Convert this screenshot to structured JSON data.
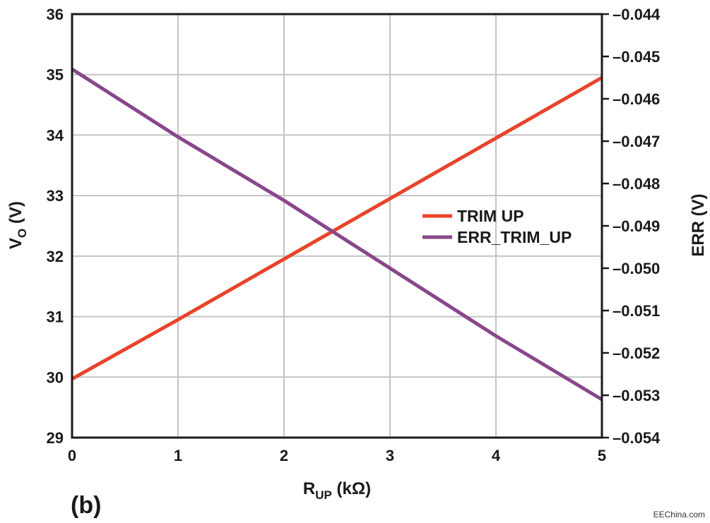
{
  "chart_data": {
    "type": "line",
    "panel_label": "(b)",
    "x_axis": {
      "label_main": "R",
      "label_sub": "UP",
      "label_unit": " (kΩ)",
      "ticks": [
        "0",
        "1",
        "2",
        "3",
        "4",
        "5"
      ],
      "range": [
        0,
        5
      ]
    },
    "y_axis_left": {
      "label_main": "V",
      "label_sub": "O",
      "label_unit": " (V)",
      "ticks": [
        "29",
        "30",
        "31",
        "32",
        "33",
        "34",
        "35",
        "36"
      ],
      "range": [
        29,
        36
      ]
    },
    "y_axis_right": {
      "label": "ERR (V)",
      "ticks": [
        "–0.054",
        "–0.053",
        "–0.052",
        "–0.051",
        "–0.050",
        "–0.049",
        "–0.048",
        "–0.047",
        "–0.046",
        "–0.045",
        "–0.044"
      ],
      "range": [
        -0.054,
        -0.044
      ]
    },
    "grid": true,
    "legend_position": "center-right",
    "series": [
      {
        "name": "TRIM UP",
        "axis": "left",
        "color": "#e8432a",
        "x": [
          0,
          1,
          2,
          3,
          4,
          5
        ],
        "y": [
          29.97,
          30.95,
          31.95,
          32.95,
          33.95,
          34.95
        ]
      },
      {
        "name": "ERR_TRIM_UP",
        "axis": "right",
        "color": "#87478a",
        "x": [
          0,
          1,
          2,
          3,
          4,
          5
        ],
        "y": [
          -0.0453,
          -0.0469,
          -0.0484,
          -0.05,
          -0.0516,
          -0.0531
        ]
      }
    ]
  },
  "watermark": "EEChina.com"
}
